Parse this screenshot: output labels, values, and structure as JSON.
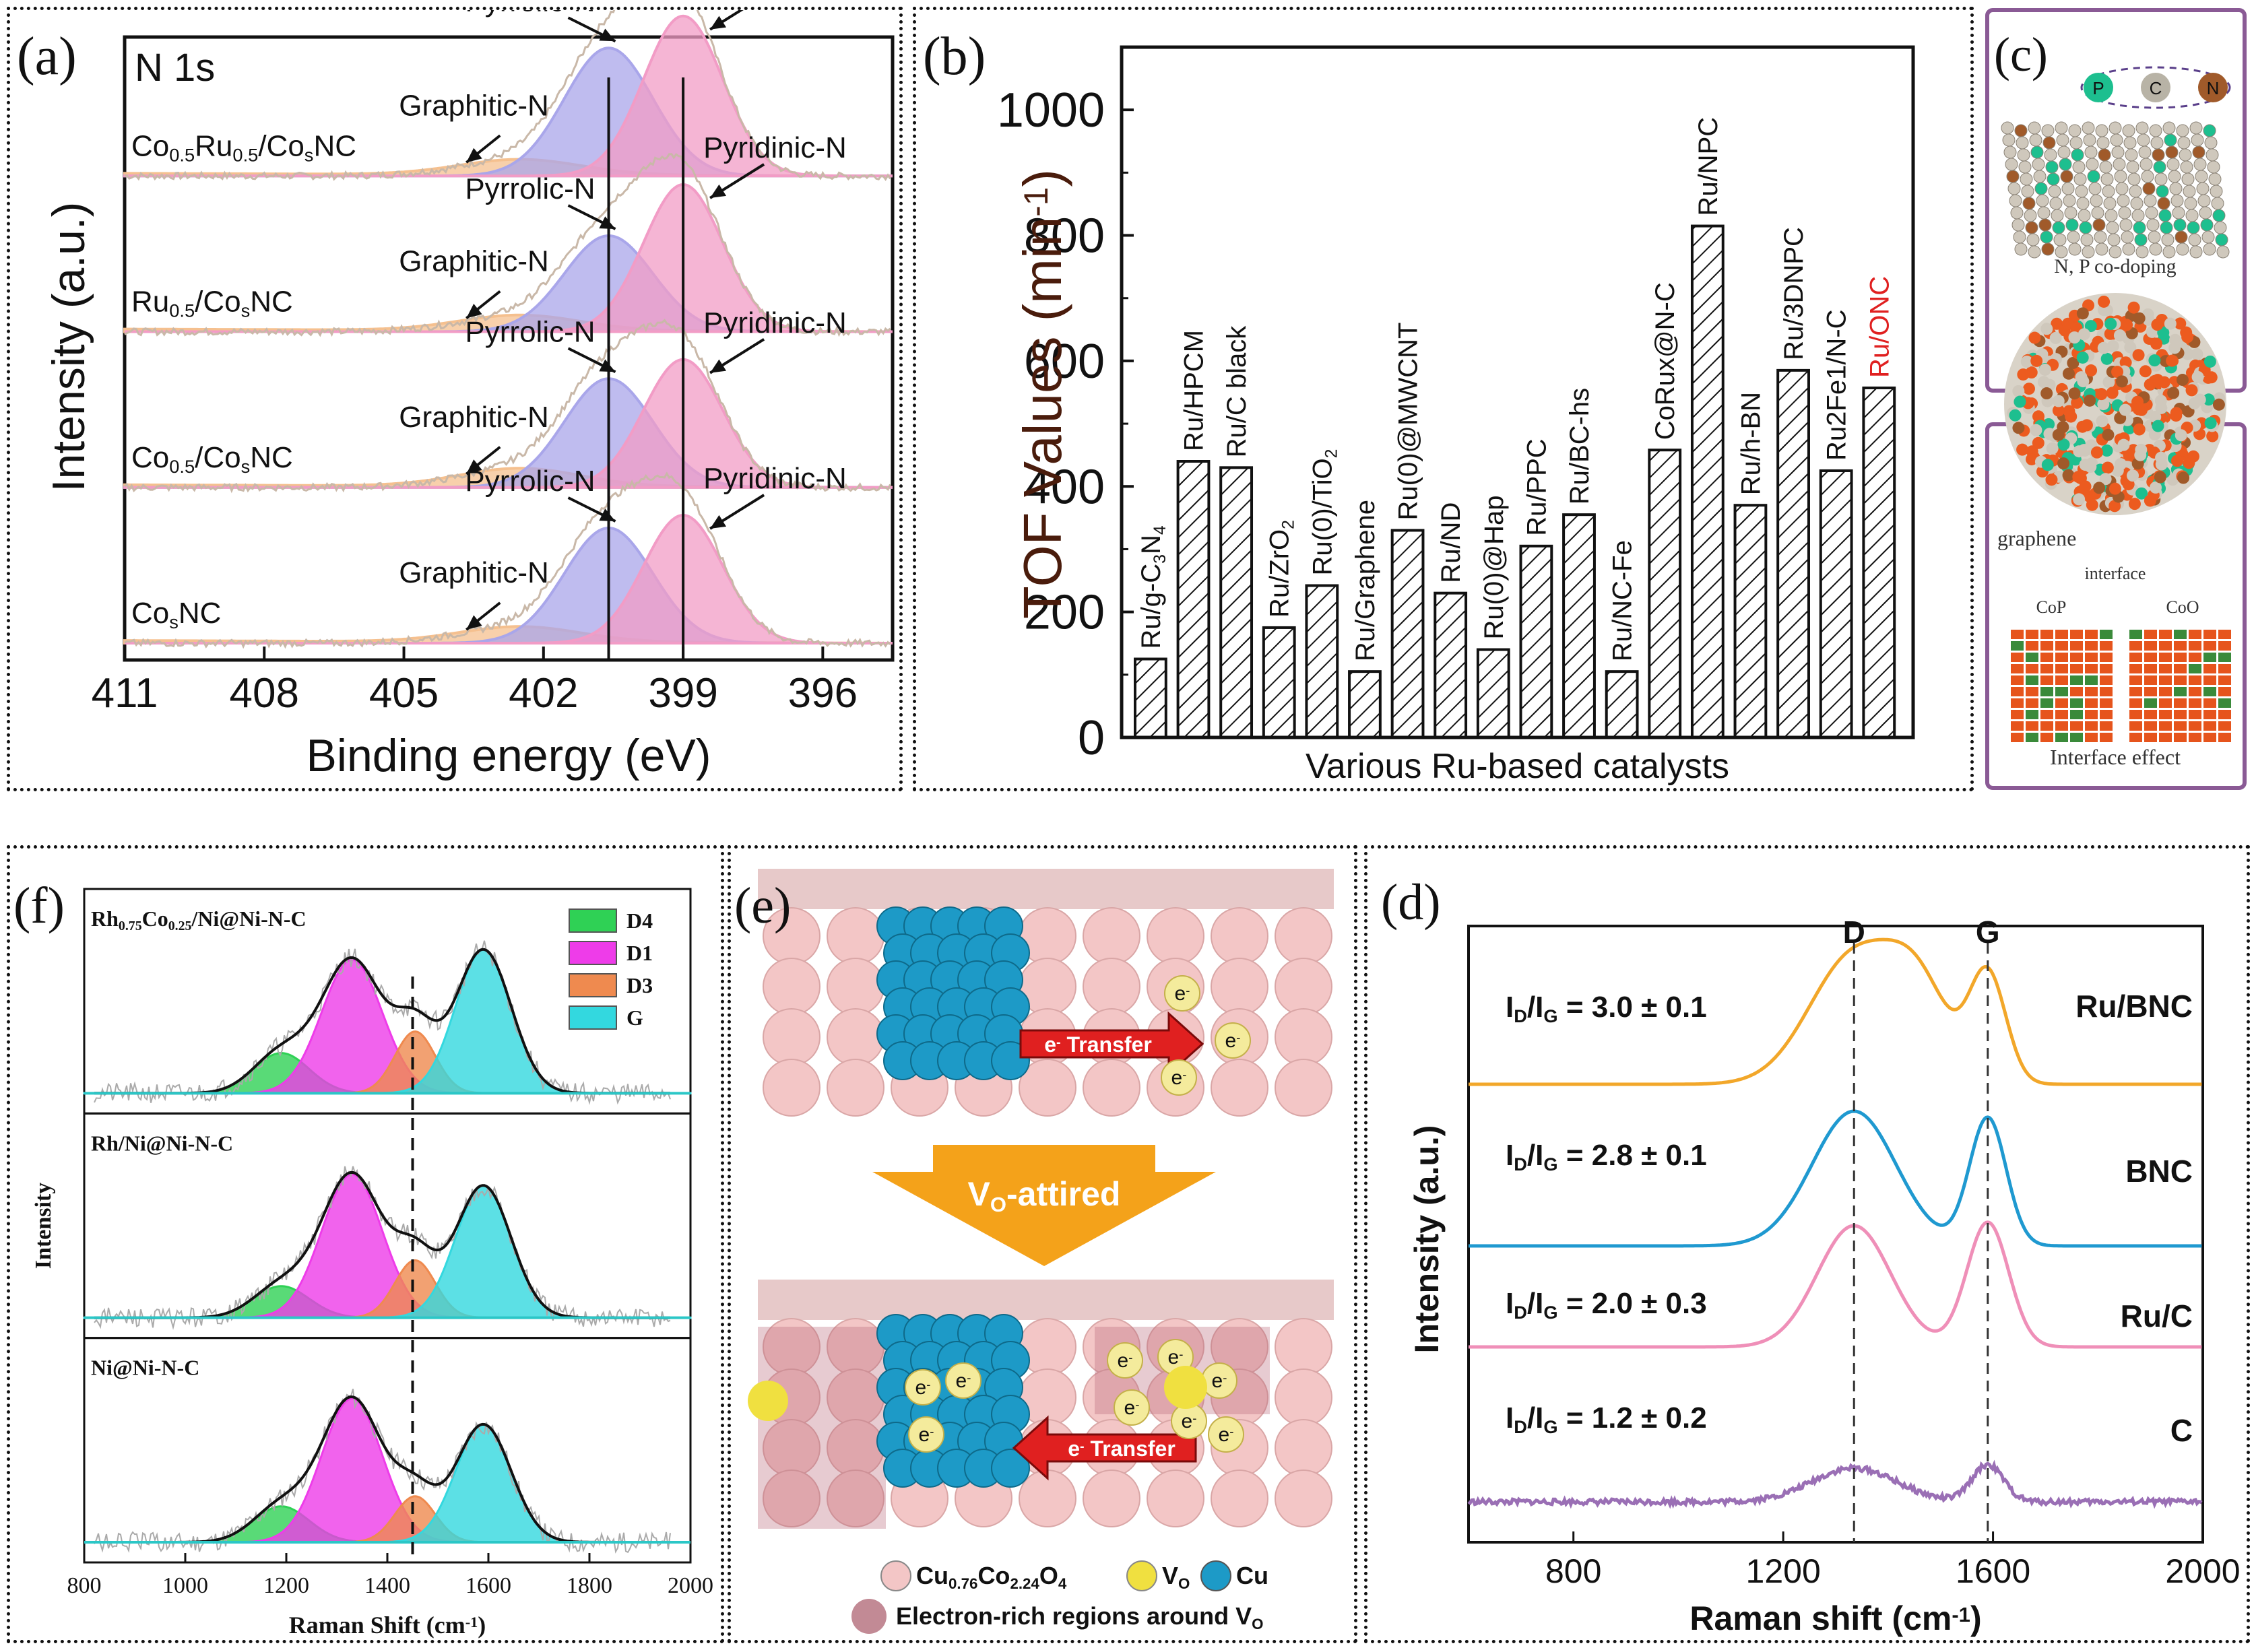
{
  "panel_a": {
    "letter": "(a)",
    "core_label": "N 1s",
    "ylabel": "Intensity (a.u.)",
    "xlabel": "Binding energy (eV)",
    "peak_labels": {
      "pyrrolic": "Pyrrolic-N",
      "pyridinic": "Pyridinic-N",
      "graphitic": "Graphitic-N"
    },
    "samples": [
      {
        "base": "Co",
        "sub1": "0.5",
        "mid": "Ru",
        "sub2": "0.5",
        "tail": "/Co",
        "sub3": "s",
        "end": "NC"
      },
      {
        "base": "Ru",
        "sub1": "0.5",
        "mid": "/Co",
        "sub2": "s",
        "tail": "NC",
        "sub3": "",
        "end": ""
      },
      {
        "base": "Co",
        "sub1": "0.5",
        "mid": "/Co",
        "sub2": "s",
        "tail": "NC",
        "sub3": "",
        "end": ""
      },
      {
        "base": "Co",
        "sub1": "s",
        "mid": "NC",
        "sub2": "",
        "tail": "",
        "sub3": "",
        "end": ""
      }
    ]
  },
  "panel_b": {
    "letter": "(b)",
    "ylabel_main": "TOF Values",
    "ylabel_unit": "(min",
    "ylabel_sup": "-1",
    "ylabel_close": ")",
    "xlabel": "Various Ru-based catalysts"
  },
  "panel_c": {
    "letter": "(c)",
    "atoms": [
      "P",
      "C",
      "N"
    ],
    "caption1": "N, P co-doping",
    "caption2": "graphene",
    "interface": "interface",
    "cop": "CoP",
    "coo": "CoO",
    "caption3": "Interface effect"
  },
  "panel_f": {
    "letter": "(f)",
    "ylabel": "Intensity",
    "xlabel_main": "Raman Shift (cm",
    "xlabel_sup": "-1",
    "xlabel_close": ")",
    "sample1_a": "Rh",
    "sample1_sub1": "0.75",
    "sample1_b": "Co",
    "sample1_sub2": "0.25",
    "sample1_c": "/Ni@Ni-N-C",
    "sample2": "Rh/Ni@Ni-N-C",
    "sample3": "Ni@Ni-N-C"
  },
  "panel_e": {
    "letter": "(e)",
    "transfer": "Transfer",
    "electron": "e",
    "arrow_label": "V",
    "arrow_sub": "O",
    "arrow_suffix": "-attired",
    "legend_cuco": "Cu",
    "legend_cuco_sub1": "0.76",
    "legend_cuco_mid": "Co",
    "legend_cuco_sub2": "2.24",
    "legend_cuco_end": "O",
    "legend_cuco_sub3": "4",
    "legend_vo": "V",
    "legend_vo_sub": "O",
    "legend_cu": "Cu",
    "legend_region": "Electron-rich regions around V",
    "legend_region_sub": "O"
  },
  "panel_d": {
    "letter": "(d)",
    "ylabel": "Intensity (a.u.)",
    "xlabel_main": "Raman shift (cm",
    "xlabel_sup": "-1",
    "xlabel_close": ")",
    "label_D": "D",
    "label_G": "G",
    "ratio_prefix": "I",
    "ratio_subD": "D",
    "ratio_slash": "/I",
    "ratio_subG": "G"
  },
  "colors": {
    "pyrrolic": "#a9a6ea",
    "pyridinic": "#f29cc6",
    "graphitic": "#f5c08f",
    "d4": "#2fd155",
    "d1": "#ee3ce9",
    "d3": "#ef8a4f",
    "g": "#33d8df",
    "ru_bnc": "#f2a72a",
    "bnc": "#1f99d0",
    "ru_c": "#ef8fb8",
    "c": "#9a6fb5",
    "cu_sphere": "#1d9ac7",
    "lattice": "#f3c6c6",
    "arrow": "#f4a21a",
    "red": "#e02020"
  },
  "chart_data": [
    {
      "panel": "a",
      "type": "line",
      "title": "N 1s",
      "xlabel": "Binding energy (eV)",
      "ylabel": "Intensity (a.u.)",
      "xlim": [
        411,
        394.5
      ],
      "x_ticks": [
        411,
        408,
        405,
        402,
        399,
        396
      ],
      "peak_centers_eV": {
        "pyrrolic": 400.6,
        "pyridinic": 399.0,
        "graphitic": 402.5
      },
      "series": [
        {
          "name": "Co0.5Ru0.5/CosNC",
          "pyrrolic": 1.0,
          "pyridinic": 1.25,
          "graphitic": 0.12
        },
        {
          "name": "Ru0.5/CosNC",
          "pyrrolic": 0.75,
          "pyridinic": 1.15,
          "graphitic": 0.12
        },
        {
          "name": "Co0.5/CosNC",
          "pyrrolic": 0.85,
          "pyridinic": 1.0,
          "graphitic": 0.14
        },
        {
          "name": "CosNC",
          "pyrrolic": 0.9,
          "pyridinic": 1.0,
          "graphitic": 0.12
        }
      ]
    },
    {
      "panel": "b",
      "type": "bar",
      "xlabel": "Various Ru-based catalysts",
      "ylabel": "TOF Values (min-1)",
      "ylim": [
        0,
        1100
      ],
      "y_ticks": [
        0,
        200,
        400,
        600,
        800,
        1000
      ],
      "categories": [
        "Ru/g-C3N4",
        "Ru/HPCM",
        "Ru/C black",
        "Ru/ZrO2",
        "Ru(0)/TiO2",
        "Ru/Graphene",
        "Ru(0)@MWCNT",
        "Ru/ND",
        "Ru(0)@Hap",
        "Ru/PPC",
        "Ru/BC-hs",
        "Ru/NC-Fe",
        "CoRux@N-C",
        "Ru/NPC",
        "Ru/h-BN",
        "Ru/3DNPC",
        "Ru2Fe1/N-C",
        "Ru/ONC"
      ],
      "values": [
        125,
        440,
        430,
        175,
        242,
        105,
        330,
        230,
        140,
        305,
        355,
        105,
        458,
        815,
        370,
        585,
        425,
        557
      ],
      "highlight": "Ru/ONC"
    },
    {
      "panel": "f",
      "type": "line",
      "xlabel": "Raman Shift (cm-1)",
      "ylabel": "Intensity",
      "xlim": [
        800,
        2000
      ],
      "x_ticks": [
        800,
        1000,
        1200,
        1400,
        1600,
        1800,
        2000
      ],
      "legend": [
        "D4",
        "D1",
        "D3",
        "G"
      ],
      "dashed_line_x": 1450,
      "peak_centers": {
        "D4": 1190,
        "D1": 1330,
        "D3": 1455,
        "G": 1590
      },
      "series": [
        {
          "name": "Rh0.75Co0.25/Ni@Ni-N-C",
          "D4": 0.28,
          "D1": 0.93,
          "D3": 0.43,
          "G": 1.0
        },
        {
          "name": "Rh/Ni@Ni-N-C",
          "D4": 0.22,
          "D1": 1.0,
          "D3": 0.4,
          "G": 0.92
        },
        {
          "name": "Ni@Ni-N-C",
          "D4": 0.25,
          "D1": 1.0,
          "D3": 0.32,
          "G": 0.82
        }
      ]
    },
    {
      "panel": "d",
      "type": "line",
      "xlabel": "Raman shift (cm-1)",
      "ylabel": "Intensity (a.u.)",
      "xlim": [
        600,
        2000
      ],
      "x_ticks": [
        800,
        1200,
        1600,
        2000
      ],
      "dashed_lines": {
        "D": 1335,
        "G": 1590
      },
      "series": [
        {
          "name": "Ru/BNC",
          "ratio": "3.0 ± 0.1"
        },
        {
          "name": "BNC",
          "ratio": "2.8 ± 0.1"
        },
        {
          "name": "Ru/C",
          "ratio": "2.0 ± 0.3"
        },
        {
          "name": "C",
          "ratio": "1.2 ± 0.2"
        }
      ]
    }
  ]
}
